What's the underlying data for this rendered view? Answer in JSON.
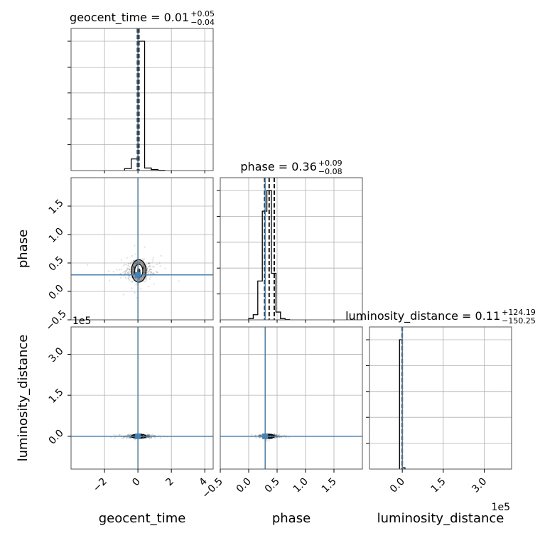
{
  "chart_data": {
    "type": "corner",
    "parameters": [
      "geocent_time",
      "phase",
      "luminosity_distance"
    ],
    "truths": {
      "geocent_time": 0.0,
      "phase": 0.29,
      "luminosity_distance": 0.0
    },
    "titles": [
      {
        "param": "geocent_time",
        "prefix": "geocent_time = 0.01",
        "plus": "+0.05",
        "minus": "−0.04"
      },
      {
        "param": "phase",
        "prefix": "phase = 0.36",
        "plus": "+0.09",
        "minus": "−0.08"
      },
      {
        "param": "luminosity_distance",
        "prefix": "luminosity_distance = 0.11",
        "plus": "+124.19",
        "minus": "−150.25"
      }
    ],
    "axes": {
      "geocent_time": {
        "range": [
          -4.0,
          4.5
        ],
        "ticks": [
          -2,
          0,
          2,
          4
        ],
        "tick_labels": [
          "−2",
          "0",
          "2",
          "4"
        ],
        "label": "geocent_time"
      },
      "phase": {
        "range": [
          -0.5,
          2.0
        ],
        "ticks": [
          -0.5,
          0.0,
          0.5,
          1.0,
          1.5
        ],
        "tick_labels": [
          "−0.5",
          "0.0",
          "0.5",
          "1.0",
          "1.5"
        ],
        "label": "phase"
      },
      "luminosity_distance": {
        "range": [
          -1.2,
          4.0
        ],
        "ticks": [
          0.0,
          1.5,
          3.0
        ],
        "tick_labels": [
          "0.0",
          "1.5",
          "3.0"
        ],
        "label": "luminosity_distance",
        "offset_label": "1e5"
      }
    },
    "histograms": {
      "geocent_time": {
        "bins": [
          -0.8,
          -0.4,
          0.0,
          0.4,
          0.8,
          1.2,
          1.6
        ],
        "counts": [
          0.015,
          0.09,
          1.0,
          0.02,
          0.008,
          0.002
        ],
        "quantiles": [
          -0.03,
          0.01,
          0.06
        ]
      },
      "phase": {
        "bins": [
          0.0,
          0.08,
          0.16,
          0.24,
          0.32,
          0.4,
          0.48,
          0.56,
          0.64,
          0.72
        ],
        "counts": [
          0.01,
          0.04,
          0.3,
          0.84,
          1.0,
          0.36,
          0.06,
          0.01,
          0.002
        ],
        "quantiles": [
          0.28,
          0.36,
          0.45
        ]
      },
      "luminosity_distance": {
        "bins": [
          -0.1,
          0.0,
          0.1
        ],
        "counts": [
          1.0,
          0.01
        ],
        "quantiles": [
          -0.0015,
          0.0,
          0.0012
        ]
      }
    },
    "joint_2d": [
      {
        "x": "geocent_time",
        "y": "phase",
        "center": [
          0.05,
          0.36
        ],
        "spread": [
          0.4,
          0.09
        ]
      },
      {
        "x": "geocent_time",
        "y": "luminosity_distance",
        "center": [
          0.05,
          0.0
        ],
        "spread": [
          0.4,
          0.03
        ]
      },
      {
        "x": "phase",
        "y": "luminosity_distance",
        "center": [
          0.36,
          0.0
        ],
        "spread": [
          0.08,
          0.03
        ]
      }
    ],
    "grid": true,
    "truth_color": "#4682b4",
    "hist_color": "#000000"
  }
}
